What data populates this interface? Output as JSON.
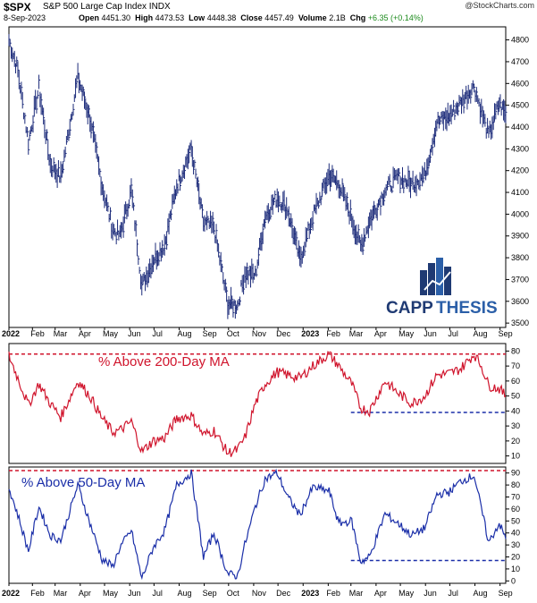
{
  "header": {
    "symbol": "$SPX",
    "name": "S&P 500 Large Cap Index",
    "exchange": "INDX",
    "date": "8-Sep-2023",
    "open_label": "Open",
    "open": "4451.30",
    "high_label": "High",
    "high": "4473.53",
    "low_label": "Low",
    "low": "4448.38",
    "close_label": "Close",
    "close": "4457.49",
    "volume_label": "Volume",
    "volume": "2.1B",
    "chg_label": "Chg",
    "chg": "+6.35 (+0.14%)",
    "credit": "@StockCharts.com"
  },
  "logo": {
    "text1": "CAPP",
    "text2": "THESIS",
    "color": "#1f3a73",
    "accent": "#2b5fa8"
  },
  "x_axis_labels": [
    "2022",
    "Feb",
    "Mar",
    "Apr",
    "May",
    "Jun",
    "Jul",
    "Aug",
    "Sep",
    "Oct",
    "Nov",
    "Dec",
    "2023",
    "Feb",
    "Mar",
    "Apr",
    "May",
    "Jun",
    "Jul",
    "Aug",
    "Sep"
  ],
  "chart_data": [
    {
      "type": "ohlc",
      "title": "$SPX S&P 500 Large Cap Index",
      "ylim": [
        3480,
        4860
      ],
      "yticks": [
        3500,
        3600,
        3700,
        3800,
        3900,
        4000,
        4100,
        4200,
        4300,
        4400,
        4500,
        4600,
        4700,
        4800
      ],
      "color": "#1c2b7a",
      "series": [
        {
          "x": [
            "2022-01-03",
            "2022-01-14",
            "2022-01-27",
            "2022-02-09",
            "2022-02-23",
            "2022-03-08",
            "2022-03-29",
            "2022-04-13",
            "2022-04-28",
            "2022-05-11",
            "2022-05-20",
            "2022-06-03",
            "2022-06-16",
            "2022-06-30",
            "2022-07-14",
            "2022-07-29",
            "2022-08-16",
            "2022-08-31",
            "2022-09-13",
            "2022-09-30",
            "2022-10-12",
            "2022-10-21",
            "2022-11-03",
            "2022-11-15",
            "2022-11-30",
            "2022-12-13",
            "2022-12-28",
            "2023-01-13",
            "2023-02-02",
            "2023-02-14",
            "2023-03-02",
            "2023-03-13",
            "2023-03-24",
            "2023-04-12",
            "2023-04-28",
            "2023-05-15",
            "2023-05-31",
            "2023-06-15",
            "2023-06-30",
            "2023-07-14",
            "2023-07-31",
            "2023-08-09",
            "2023-08-18",
            "2023-08-31",
            "2023-09-08"
          ],
          "y": [
            4800,
            4660,
            4330,
            4580,
            4230,
            4170,
            4630,
            4440,
            4130,
            3930,
            3900,
            4110,
            3670,
            3790,
            3860,
            4130,
            4300,
            3960,
            3940,
            3590,
            3580,
            3730,
            3720,
            3990,
            4080,
            4020,
            3790,
            3990,
            4180,
            4140,
            3980,
            3850,
            3970,
            4110,
            4170,
            4140,
            4180,
            4420,
            4450,
            4510,
            4590,
            4470,
            4360,
            4510,
            4457
          ]
        }
      ]
    },
    {
      "type": "line",
      "title": "% Above 200-Day MA",
      "ylim": [
        5,
        85
      ],
      "yticks": [
        10,
        20,
        30,
        40,
        50,
        60,
        70,
        80
      ],
      "color": "#d0142c",
      "reference_lines": [
        {
          "y": 78,
          "style": "dashed",
          "color": "#d0142c"
        },
        {
          "y": 39,
          "style": "dashed",
          "color": "#1a2ea8",
          "from": "2023-03-01",
          "to": "2023-09-08"
        }
      ],
      "series": [
        {
          "x": [
            "2022-01-03",
            "2022-01-14",
            "2022-01-27",
            "2022-02-09",
            "2022-02-23",
            "2022-03-08",
            "2022-03-29",
            "2022-04-13",
            "2022-04-28",
            "2022-05-11",
            "2022-05-20",
            "2022-06-03",
            "2022-06-16",
            "2022-06-30",
            "2022-07-14",
            "2022-07-29",
            "2022-08-16",
            "2022-08-31",
            "2022-09-13",
            "2022-09-30",
            "2022-10-12",
            "2022-10-21",
            "2022-11-03",
            "2022-11-15",
            "2022-11-30",
            "2022-12-13",
            "2022-12-28",
            "2023-01-13",
            "2023-02-02",
            "2023-02-14",
            "2023-03-02",
            "2023-03-13",
            "2023-03-24",
            "2023-04-12",
            "2023-04-28",
            "2023-05-15",
            "2023-05-31",
            "2023-06-15",
            "2023-06-30",
            "2023-07-14",
            "2023-07-31",
            "2023-08-09",
            "2023-08-18",
            "2023-08-31",
            "2023-09-08"
          ],
          "y": [
            77,
            62,
            44,
            58,
            45,
            36,
            60,
            50,
            35,
            26,
            27,
            33,
            13,
            20,
            22,
            35,
            37,
            24,
            27,
            12,
            14,
            22,
            45,
            58,
            66,
            64,
            62,
            70,
            78,
            70,
            58,
            42,
            40,
            60,
            52,
            45,
            50,
            64,
            65,
            68,
            78,
            70,
            57,
            55,
            50
          ]
        }
      ]
    },
    {
      "type": "line",
      "title": "% Above 50-Day MA",
      "ylim": [
        -2,
        95
      ],
      "yticks": [
        0,
        10,
        20,
        30,
        40,
        50,
        60,
        70,
        80,
        90
      ],
      "color": "#1a2ea8",
      "reference_lines": [
        {
          "y": 92,
          "style": "dashed",
          "color": "#d0142c"
        },
        {
          "y": 17,
          "style": "dashed",
          "color": "#1a2ea8",
          "from": "2023-03-01",
          "to": "2023-09-08"
        }
      ],
      "series": [
        {
          "x": [
            "2022-01-03",
            "2022-01-14",
            "2022-01-27",
            "2022-02-09",
            "2022-02-23",
            "2022-03-08",
            "2022-03-29",
            "2022-04-13",
            "2022-04-28",
            "2022-05-11",
            "2022-05-20",
            "2022-06-03",
            "2022-06-16",
            "2022-06-30",
            "2022-07-14",
            "2022-07-29",
            "2022-08-16",
            "2022-08-31",
            "2022-09-13",
            "2022-09-30",
            "2022-10-12",
            "2022-10-21",
            "2022-11-03",
            "2022-11-15",
            "2022-11-30",
            "2022-12-13",
            "2022-12-28",
            "2023-01-13",
            "2023-02-02",
            "2023-02-14",
            "2023-03-02",
            "2023-03-13",
            "2023-03-24",
            "2023-04-12",
            "2023-04-28",
            "2023-05-15",
            "2023-05-31",
            "2023-06-15",
            "2023-06-30",
            "2023-07-14",
            "2023-07-31",
            "2023-08-09",
            "2023-08-18",
            "2023-08-31",
            "2023-09-08"
          ],
          "y": [
            78,
            55,
            25,
            62,
            38,
            34,
            80,
            48,
            18,
            12,
            28,
            42,
            2,
            28,
            42,
            80,
            90,
            20,
            40,
            6,
            4,
            30,
            62,
            85,
            90,
            70,
            55,
            78,
            75,
            48,
            50,
            16,
            20,
            56,
            48,
            38,
            44,
            72,
            74,
            83,
            88,
            60,
            32,
            48,
            35
          ]
        }
      ]
    }
  ],
  "panel_labels": [
    "% Above 200-Day MA",
    "% Above 50-Day MA"
  ]
}
